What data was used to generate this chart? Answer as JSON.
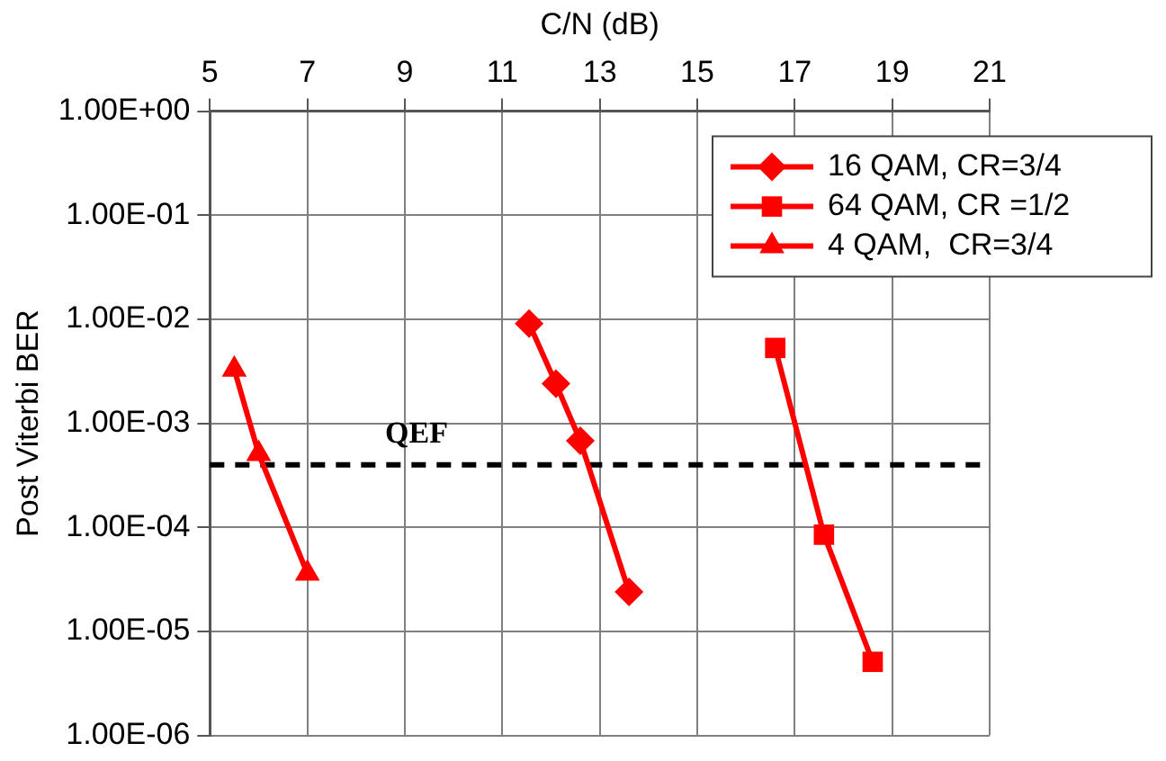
{
  "chart_data": {
    "type": "line",
    "xlabel": "C/N (dB)",
    "ylabel": "Post Viterbi BER",
    "xlim": [
      5,
      21
    ],
    "xticks": [
      5,
      7,
      9,
      11,
      13,
      15,
      17,
      19,
      21
    ],
    "ylim": [
      1e-06,
      1
    ],
    "yticks": [
      {
        "value": 1,
        "label": "1.00E+00"
      },
      {
        "value": 0.1,
        "label": "1.00E-01"
      },
      {
        "value": 0.01,
        "label": "1.00E-02"
      },
      {
        "value": 0.001,
        "label": "1.00E-03"
      },
      {
        "value": 0.0001,
        "label": "1.00E-04"
      },
      {
        "value": 1e-05,
        "label": "1.00E-05"
      },
      {
        "value": 1e-06,
        "label": "1.00E-06"
      }
    ],
    "log": "y",
    "grid": true,
    "legend": "top right",
    "line_style": "solid",
    "series": [
      {
        "name": "16 QAM, CR=3/4",
        "color": "#ff0000",
        "marker": "diamond",
        "x": [
          11.55,
          12.1,
          12.6,
          13.6
        ],
        "values": [
          0.0091,
          0.0024,
          0.00068,
          2.4e-05
        ]
      },
      {
        "name": "64 QAM, CR =1/2",
        "color": "#ff0000",
        "marker": "square",
        "x": [
          16.6,
          17.6,
          18.6
        ],
        "values": [
          0.0053,
          8.5e-05,
          5.1e-06
        ]
      },
      {
        "name": "4 QAM,  CR=3/4",
        "color": "#ff0000",
        "marker": "triangle",
        "x": [
          5.5,
          6.0,
          7.0
        ],
        "values": [
          0.0033,
          0.00051,
          3.6e-05
        ]
      }
    ],
    "ref_lines": [
      {
        "axis": "y",
        "value": 0.0004,
        "label": "QEF",
        "color": "#000000",
        "line_style": "dashed"
      }
    ]
  }
}
